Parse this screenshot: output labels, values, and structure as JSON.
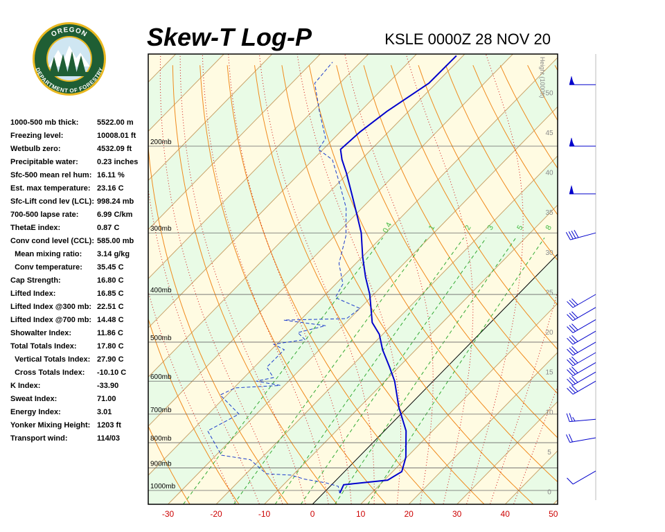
{
  "chart_data": {
    "type": "skewt",
    "title": "Skew-T Log-P",
    "subtitle": "KSLE 0000Z 28 NOV 20",
    "xlim": [
      -34.1,
      50.9
    ],
    "xticks": [
      -30,
      -20,
      -10,
      0,
      10,
      20,
      30,
      40,
      50
    ],
    "ylim": [
      1067,
      130
    ],
    "yticks": [
      {
        "value": 1000,
        "label": "1000mb"
      },
      {
        "value": 900,
        "label": "900mb"
      },
      {
        "value": 800,
        "label": "800mb"
      },
      {
        "value": 700,
        "label": "700mb"
      },
      {
        "value": 600,
        "label": "600mb"
      },
      {
        "value": 500,
        "label": "500mb"
      },
      {
        "value": 400,
        "label": "400mb"
      },
      {
        "value": 300,
        "label": "300mb"
      },
      {
        "value": 200,
        "label": "200mb"
      }
    ],
    "y2_label": "Height (1000ft)",
    "y2lim": [
      -1.6,
      54.8
    ],
    "y2ticks": [
      0,
      5,
      10,
      15,
      20,
      25,
      30,
      35,
      40,
      45,
      50
    ],
    "mixing_ratio": [
      0.4,
      1,
      2,
      3,
      5,
      8
    ],
    "temperature": {
      "color": "#0000cc",
      "pressure": [
        1013,
        974,
        953,
        937,
        916,
        856,
        757,
        678,
        600,
        562,
        518,
        482,
        456,
        427,
        400,
        369,
        335,
        300,
        276,
        250,
        227,
        213,
        203,
        187,
        170,
        149,
        131
      ],
      "values": [
        3.4,
        2.5,
        10.7,
        11.2,
        11.9,
        9.8,
        4.5,
        -1.8,
        -8.0,
        -11.9,
        -16.9,
        -20.7,
        -24.6,
        -27.7,
        -30.8,
        -35.2,
        -40.0,
        -45.1,
        -49.6,
        -55.0,
        -60.3,
        -64.0,
        -66.4,
        -65.9,
        -64.5,
        -61.5,
        -61.4
      ]
    },
    "dewpoint": {
      "color": "#1a3acc",
      "pressure": [
        1013,
        981,
        965,
        949,
        931,
        925,
        866,
        848,
        757,
        700,
        640,
        619,
        612,
        600,
        590,
        562,
        518,
        505,
        494,
        478,
        463,
        451,
        448,
        427,
        406,
        381,
        346,
        304,
        267,
        235,
        213,
        203,
        193,
        170,
        149,
        135
      ],
      "values": [
        3.4,
        1.7,
        -1.6,
        -6.7,
        -10.4,
        -15.8,
        -22.0,
        -28.9,
        -36.7,
        -33.6,
        -41.4,
        -39.7,
        -30.9,
        -36.7,
        -33.9,
        -37.4,
        -37.3,
        -40.6,
        -35.1,
        -38.0,
        -33.6,
        -43.4,
        -30.7,
        -30.0,
        -37.3,
        -38.5,
        -43.5,
        -47.7,
        -53.3,
        -60.4,
        -66.0,
        -71.0,
        -71.7,
        -78.5,
        -85.2,
        -85.8
      ]
    },
    "wind": {
      "color": "#0000cc",
      "pressure": [
        150,
        200,
        250,
        300,
        400,
        425,
        450,
        475,
        500,
        525,
        550,
        575,
        600,
        717,
        782,
        913
      ],
      "direction": [
        270,
        270,
        270,
        255,
        240,
        240,
        240,
        240,
        240,
        240,
        240,
        240,
        240,
        265,
        260,
        240
      ],
      "speed": [
        55,
        55,
        50,
        40,
        30,
        30,
        30,
        30,
        30,
        30,
        30,
        30,
        30,
        25,
        20,
        10
      ]
    }
  },
  "logo": {
    "top": "OREGON",
    "bottom": "DEPARTMENT OF FORESTRY"
  },
  "stats": [
    [
      "1000-500 mb thick:",
      "5522.00 m"
    ],
    [
      "Freezing level:",
      "10008.01 ft"
    ],
    [
      "Wetbulb zero:",
      "4532.09 ft"
    ],
    [
      "Precipitable water:",
      "0.23 inches"
    ],
    [
      "Sfc-500 mean rel hum:",
      "16.11 %"
    ],
    [
      "Est. max temperature:",
      "23.16 C"
    ],
    [
      "Sfc-Lift cond lev (LCL):",
      "998.24 mb"
    ],
    [
      "700-500 lapse rate:",
      "6.99 C/km"
    ],
    [
      "ThetaE index:",
      "0.87 C"
    ],
    [
      "Conv cond level (CCL):",
      "585.00 mb"
    ],
    [
      "  Mean mixing ratio:",
      "3.14 g/kg"
    ],
    [
      "  Conv temperature:",
      "35.45 C"
    ],
    [
      "Cap Strength:",
      "16.80 C"
    ],
    [
      "Lifted Index:",
      "16.85 C"
    ],
    [
      "Lifted Index @300 mb:",
      "22.51 C"
    ],
    [
      "Lifted Index @700 mb:",
      "14.48 C"
    ],
    [
      "Showalter Index:",
      "11.86 C"
    ],
    [
      "Total Totals Index:",
      "17.80 C"
    ],
    [
      "  Vertical Totals Index:",
      "27.90 C"
    ],
    [
      "  Cross Totals Index:",
      "-10.10 C"
    ],
    [
      "K Index:",
      "-33.90"
    ],
    [
      "Sweat Index:",
      "71.00"
    ],
    [
      "Energy Index:",
      "3.01"
    ],
    [
      "Yonker Mixing Height:",
      "1203 ft"
    ],
    [
      "Transport wind:",
      "114/03"
    ]
  ]
}
